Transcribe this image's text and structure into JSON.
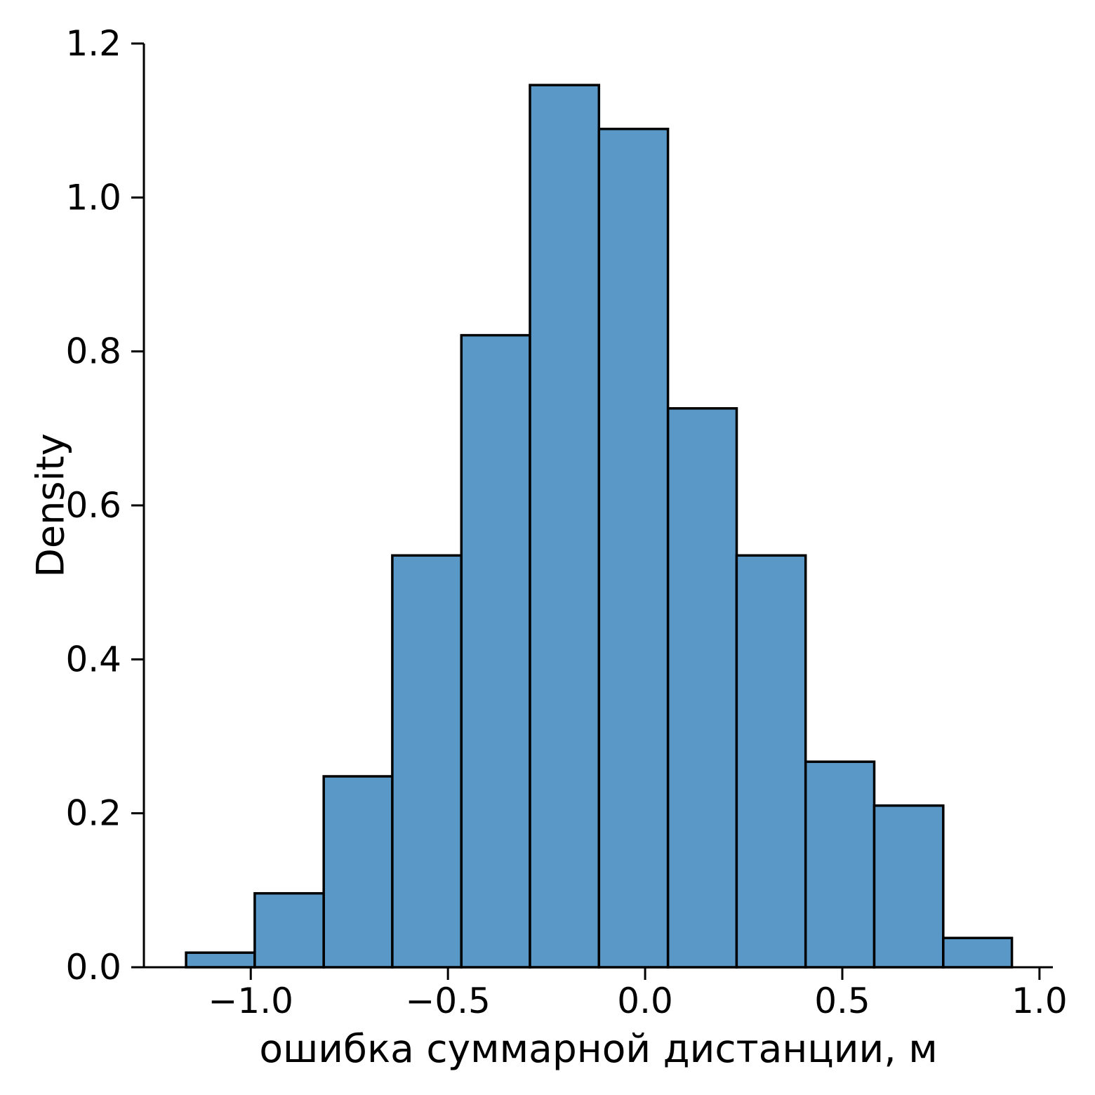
{
  "figure": {
    "background": "#ffffff"
  },
  "chart_data": {
    "type": "bar",
    "histogram": true,
    "title": "",
    "xlabel": "ошибка суммарной дистанции, м",
    "ylabel": "Density",
    "bin_edges": [
      -1.164,
      -0.99,
      -0.815,
      -0.641,
      -0.466,
      -0.292,
      -0.117,
      0.058,
      0.232,
      0.407,
      0.581,
      0.756,
      0.93
    ],
    "densities": [
      0.019,
      0.096,
      0.248,
      0.535,
      0.821,
      1.146,
      1.089,
      0.726,
      0.535,
      0.267,
      0.21,
      0.038
    ],
    "x_ticks": [
      -1.0,
      -0.5,
      0.0,
      0.5,
      1.0
    ],
    "x_tick_labels": [
      "−1.0",
      "−0.5",
      "0.0",
      "0.5",
      "1.0"
    ],
    "y_ticks": [
      0.0,
      0.2,
      0.4,
      0.6,
      0.8,
      1.0,
      1.2
    ],
    "y_tick_labels": [
      "0.0",
      "0.2",
      "0.4",
      "0.6",
      "0.8",
      "1.0",
      "1.2"
    ],
    "xlim": [
      -1.271,
      1.034
    ],
    "ylim": [
      0,
      1.2
    ],
    "grid": false,
    "legend": null,
    "bar_fill": "#5a98c7",
    "bar_edge": "#000000",
    "axis_color": "#000000"
  }
}
